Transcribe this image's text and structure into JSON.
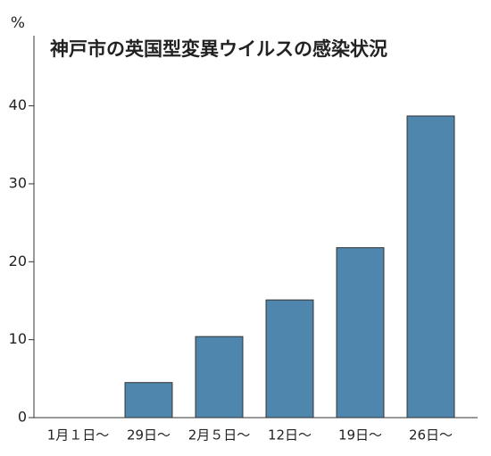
{
  "chart_data": {
    "type": "bar",
    "title": "神戸市の英国型変異ウイルスの感染状況",
    "y_label": "%",
    "categories": [
      "1月１日～",
      "29日～",
      "2月５日～",
      "12日～",
      "19日～",
      "26日～"
    ],
    "values": [
      0,
      4.5,
      10.4,
      15.1,
      21.8,
      38.7
    ],
    "color": "#4f86ad",
    "ylim": [
      0,
      49
    ],
    "yticks": [
      0,
      10,
      20,
      30,
      40
    ],
    "grid": false
  }
}
